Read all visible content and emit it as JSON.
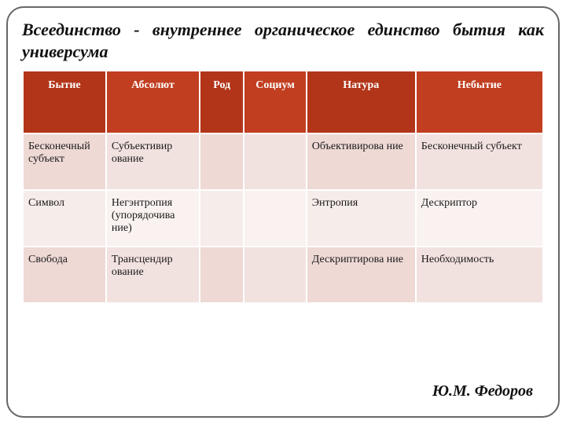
{
  "title": "Всеединство - внутреннее органическое единство бытия как универсума",
  "attribution": "Ю.М. Федоров",
  "table": {
    "headers": [
      "Бытие",
      "Абсолют",
      "Род",
      "Социум",
      "Натура",
      "Небытие"
    ],
    "rows": [
      [
        "Бесконечный субъект",
        "Субъективир ование",
        "",
        "",
        "Объективирова ние",
        "Бесконечный субъект"
      ],
      [
        "Символ",
        "Негэнтропия (упорядочива ние)",
        "",
        "",
        "Энтропия",
        "Дескриптор"
      ],
      [
        "Свобода",
        "Трансцендир ование",
        "",
        "",
        "Дескриптирова ние",
        "Необходимость"
      ]
    ]
  },
  "colors": {
    "header_odd": "#b23519",
    "header_even": "#c13e20",
    "row_dark_odd": "#eed9d5",
    "row_dark_even": "#f2e2df",
    "row_light_odd": "#f6ecea",
    "row_light_even": "#f9f2f0",
    "border": "#ffffff",
    "frame_border": "#666666"
  }
}
